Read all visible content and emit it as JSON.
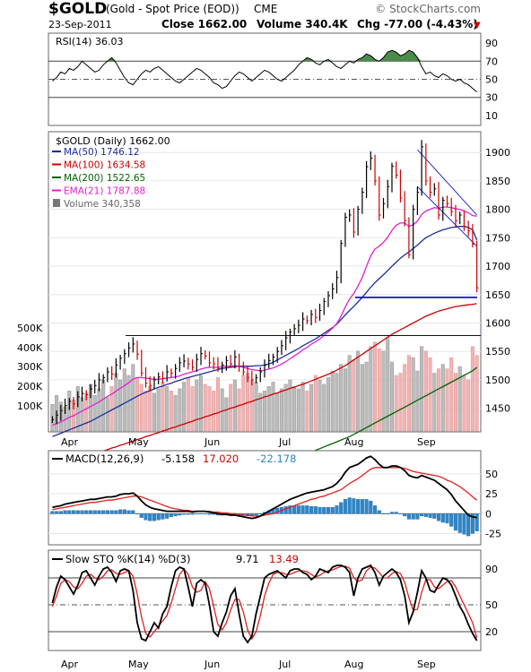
{
  "header": {
    "symbol": "$GOLD",
    "name": "(Gold - Spot Price (EOD))",
    "exchange": "CME",
    "watermark": "© StockCharts.com",
    "date": "23-Sep-2011",
    "close": "Close 1662.00",
    "volume": "Volume 340.4K",
    "change": "Chg -77.00 (-4.43%)",
    "change_marker": "▼",
    "down_color": "#cc0000"
  },
  "x_labels": [
    "Apr",
    "May",
    "Jun",
    "Jul",
    "Aug",
    "Sep"
  ],
  "chart_data": [
    {
      "type": "line",
      "panel": "rsi",
      "legend": "RSI(14) 36.03",
      "y_ticks": [
        90,
        70,
        50,
        30,
        10
      ],
      "ylim": [
        0,
        100
      ],
      "reference_lines": [
        70,
        50,
        30
      ],
      "fill_above": 70,
      "fill_color": "#4a8a4a",
      "values": [
        48,
        52,
        58,
        56,
        62,
        60,
        64,
        70,
        66,
        62,
        58,
        60,
        66,
        70,
        74,
        68,
        60,
        52,
        46,
        44,
        50,
        56,
        60,
        58,
        62,
        64,
        60,
        56,
        52,
        48,
        46,
        50,
        54,
        58,
        62,
        60,
        56,
        52,
        46,
        44,
        40,
        42,
        48,
        54,
        58,
        56,
        52,
        48,
        52,
        56,
        60,
        58,
        54,
        50,
        48,
        52,
        56,
        60,
        66,
        70,
        74,
        72,
        68,
        66,
        70,
        72,
        68,
        64,
        62,
        66,
        70,
        68,
        72,
        74,
        78,
        76,
        72,
        70,
        74,
        80,
        82,
        80,
        76,
        78,
        82,
        80,
        74,
        64,
        56,
        58,
        54,
        52,
        56,
        54,
        50,
        48,
        50,
        46,
        44,
        40,
        36
      ]
    },
    {
      "type": "line",
      "panel": "price",
      "title": "$GOLD (Daily) 1662.00",
      "y_ticks": [
        1900,
        1850,
        1800,
        1750,
        1700,
        1650,
        1600,
        1550,
        1500,
        1450
      ],
      "ylim": [
        1410,
        1935
      ],
      "volume_ticks": [
        "500K",
        "400K",
        "300K",
        "200K",
        "100K"
      ],
      "volume_lim": [
        0,
        520
      ],
      "legend": [
        {
          "label": "MA(50) 1746.12",
          "color": "#1c2f9a"
        },
        {
          "label": "MA(100) 1634.58",
          "color": "#cc0000"
        },
        {
          "label": "MA(200) 1522.65",
          "color": "#006400"
        },
        {
          "label": "EMA(21) 1787.88",
          "color": "#e020d0"
        },
        {
          "label": "Volume 340,358",
          "color": "#666666"
        }
      ],
      "close": [
        1430,
        1438,
        1446,
        1455,
        1462,
        1458,
        1470,
        1476,
        1474,
        1484,
        1490,
        1500,
        1504,
        1514,
        1510,
        1526,
        1538,
        1546,
        1556,
        1563,
        1545,
        1512,
        1494,
        1490,
        1500,
        1505,
        1503,
        1514,
        1512,
        1520,
        1530,
        1533,
        1528,
        1522,
        1536,
        1546,
        1542,
        1530,
        1528,
        1520,
        1526,
        1534,
        1528,
        1540,
        1524,
        1514,
        1504,
        1500,
        1504,
        1514,
        1526,
        1534,
        1540,
        1550,
        1560,
        1574,
        1584,
        1590,
        1596,
        1607,
        1604,
        1615,
        1610,
        1622,
        1638,
        1648,
        1660,
        1680,
        1740,
        1786,
        1790,
        1760,
        1800,
        1830,
        1875,
        1890,
        1850,
        1790,
        1810,
        1840,
        1876,
        1860,
        1820,
        1780,
        1720,
        1800,
        1830,
        1910,
        1850,
        1830,
        1836,
        1790,
        1816,
        1810,
        1796,
        1780,
        1790,
        1770,
        1762,
        1739,
        1662
      ],
      "volume": [
        120,
        160,
        130,
        110,
        180,
        140,
        200,
        150,
        170,
        210,
        160,
        190,
        230,
        150,
        200,
        260,
        230,
        280,
        250,
        300,
        240,
        210,
        180,
        200,
        170,
        190,
        220,
        200,
        180,
        160,
        190,
        220,
        240,
        200,
        230,
        250,
        210,
        200,
        180,
        240,
        190,
        150,
        210,
        230,
        190,
        250,
        260,
        230,
        220,
        170,
        180,
        200,
        220,
        170,
        190,
        210,
        230,
        200,
        190,
        220,
        180,
        210,
        250,
        230,
        210,
        240,
        270,
        260,
        300,
        280,
        340,
        320,
        360,
        300,
        310,
        380,
        400,
        370,
        360,
        420,
        310,
        250,
        260,
        300,
        340,
        330,
        270,
        380,
        360,
        330,
        260,
        280,
        300,
        280,
        330,
        260,
        290,
        250,
        230,
        380,
        340
      ],
      "ma50": [
        1400,
        1403,
        1406,
        1409,
        1412,
        1415,
        1418,
        1421,
        1424,
        1427,
        1431,
        1435,
        1439,
        1443,
        1447,
        1451,
        1455,
        1459,
        1463,
        1467,
        1471,
        1475,
        1478,
        1481,
        1484,
        1487,
        1489,
        1492,
        1494,
        1497,
        1499,
        1502,
        1504,
        1506,
        1508,
        1510,
        1512,
        1514,
        1516,
        1518,
        1520,
        1521,
        1522,
        1523,
        1524,
        1524,
        1524,
        1524,
        1525,
        1525,
        1526,
        1528,
        1531,
        1535,
        1539,
        1543,
        1547,
        1551,
        1555,
        1560,
        1564,
        1568,
        1572,
        1577,
        1582,
        1587,
        1592,
        1598,
        1606,
        1614,
        1622,
        1629,
        1637,
        1645,
        1654,
        1663,
        1671,
        1678,
        1685,
        1692,
        1700,
        1707,
        1714,
        1720,
        1725,
        1731,
        1737,
        1744,
        1750,
        1754,
        1758,
        1761,
        1764,
        1766,
        1768,
        1769,
        1770,
        1770,
        1768,
        1764,
        1746
      ],
      "ma100": [
        1350,
        1352,
        1354,
        1356,
        1358,
        1360,
        1362,
        1364,
        1366,
        1368,
        1370,
        1372,
        1375,
        1377,
        1380,
        1382,
        1385,
        1387,
        1390,
        1392,
        1395,
        1397,
        1400,
        1402,
        1405,
        1407,
        1410,
        1412,
        1415,
        1417,
        1420,
        1422,
        1425,
        1427,
        1430,
        1432,
        1435,
        1437,
        1440,
        1442,
        1445,
        1447,
        1450,
        1452,
        1455,
        1457,
        1460,
        1462,
        1465,
        1467,
        1470,
        1472,
        1475,
        1477,
        1480,
        1482,
        1485,
        1487,
        1490,
        1492,
        1495,
        1498,
        1501,
        1504,
        1507,
        1510,
        1513,
        1517,
        1521,
        1525,
        1530,
        1535,
        1540,
        1545,
        1550,
        1555,
        1560,
        1565,
        1570,
        1575,
        1580,
        1584,
        1588,
        1592,
        1596,
        1600,
        1604,
        1608,
        1612,
        1615,
        1618,
        1621,
        1623,
        1625,
        1627,
        1629,
        1630,
        1631,
        1632,
        1633,
        1634
      ],
      "ma200": [
        1300,
        1301,
        1302,
        1303,
        1304,
        1305,
        1306,
        1307,
        1308,
        1309,
        1310,
        1311,
        1312,
        1313,
        1314,
        1315,
        1316,
        1317,
        1318,
        1319,
        1320,
        1321,
        1322,
        1323,
        1324,
        1325,
        1326,
        1327,
        1328,
        1329,
        1330,
        1331,
        1332,
        1333,
        1334,
        1335,
        1336,
        1337,
        1338,
        1339,
        1340,
        1341,
        1342,
        1343,
        1344,
        1345,
        1346,
        1347,
        1348,
        1349,
        1350,
        1352,
        1354,
        1356,
        1358,
        1360,
        1362,
        1364,
        1366,
        1368,
        1370,
        1373,
        1376,
        1379,
        1382,
        1385,
        1388,
        1391,
        1394,
        1397,
        1400,
        1404,
        1408,
        1412,
        1416,
        1420,
        1424,
        1428,
        1432,
        1436,
        1440,
        1444,
        1448,
        1452,
        1456,
        1460,
        1464,
        1468,
        1472,
        1476,
        1480,
        1484,
        1488,
        1492,
        1496,
        1500,
        1504,
        1508,
        1512,
        1516,
        1522
      ],
      "ema21": [
        1420,
        1423,
        1426,
        1430,
        1434,
        1437,
        1441,
        1445,
        1449,
        1453,
        1457,
        1461,
        1466,
        1471,
        1475,
        1480,
        1485,
        1490,
        1495,
        1501,
        1504,
        1504,
        1503,
        1502,
        1501,
        1501,
        1502,
        1503,
        1504,
        1505,
        1507,
        1510,
        1512,
        1514,
        1516,
        1519,
        1521,
        1522,
        1522,
        1522,
        1523,
        1524,
        1524,
        1525,
        1524,
        1522,
        1520,
        1518,
        1517,
        1516,
        1517,
        1519,
        1521,
        1524,
        1528,
        1532,
        1537,
        1542,
        1547,
        1553,
        1557,
        1563,
        1567,
        1572,
        1578,
        1584,
        1591,
        1599,
        1612,
        1628,
        1642,
        1652,
        1665,
        1680,
        1700,
        1718,
        1730,
        1735,
        1742,
        1751,
        1763,
        1772,
        1776,
        1776,
        1770,
        1773,
        1779,
        1791,
        1797,
        1800,
        1803,
        1802,
        1804,
        1804,
        1803,
        1801,
        1800,
        1797,
        1794,
        1789,
        1788
      ],
      "support_lines": [
        {
          "value": 1578,
          "color": "#00008b"
        },
        {
          "value": 1645,
          "color": "#0000cc"
        }
      ]
    },
    {
      "type": "line",
      "panel": "macd",
      "legend": [
        "MACD(12,26,9)",
        "-5.158",
        "17.020",
        "-22.178"
      ],
      "y_ticks": [
        50,
        25,
        0,
        -25
      ],
      "ylim": [
        -38,
        78
      ],
      "macd": [
        8,
        9,
        10,
        12,
        13,
        14,
        15,
        16,
        17,
        18,
        18,
        19,
        20,
        21,
        21,
        22,
        24,
        25,
        25,
        26,
        22,
        16,
        11,
        8,
        6,
        5,
        4,
        3,
        3,
        3,
        3,
        3,
        3,
        2,
        3,
        3,
        3,
        2,
        1,
        0,
        -1,
        -1,
        -2,
        -2,
        -3,
        -4,
        -5,
        -6,
        -5,
        -3,
        0,
        3,
        6,
        9,
        12,
        15,
        18,
        20,
        22,
        24,
        26,
        27,
        28,
        29,
        30,
        32,
        34,
        38,
        44,
        52,
        58,
        60,
        62,
        66,
        70,
        72,
        68,
        62,
        58,
        58,
        60,
        60,
        58,
        54,
        48,
        46,
        45,
        48,
        46,
        44,
        42,
        38,
        34,
        30,
        24,
        16,
        10,
        4,
        -2,
        -4,
        -5
      ],
      "signal": [
        5,
        6,
        7,
        8,
        9,
        10,
        11,
        12,
        13,
        14,
        14,
        15,
        16,
        17,
        17,
        18,
        19,
        20,
        21,
        22,
        22,
        21,
        19,
        17,
        15,
        13,
        11,
        9,
        7,
        6,
        5,
        4,
        4,
        3,
        3,
        3,
        3,
        3,
        2,
        2,
        1,
        1,
        0,
        0,
        -1,
        -2,
        -2,
        -3,
        -3,
        -3,
        -2,
        -1,
        0,
        2,
        4,
        6,
        8,
        10,
        12,
        14,
        16,
        18,
        19,
        21,
        22,
        24,
        26,
        28,
        30,
        34,
        38,
        41,
        44,
        48,
        52,
        56,
        58,
        58,
        58,
        58,
        58,
        58,
        58,
        57,
        55,
        53,
        52,
        51,
        50,
        49,
        48,
        47,
        45,
        42,
        40,
        37,
        34,
        30,
        26,
        21,
        17
      ],
      "histogram": [
        3,
        3,
        3,
        4,
        4,
        4,
        4,
        4,
        4,
        4,
        4,
        4,
        4,
        4,
        4,
        4,
        5,
        5,
        4,
        4,
        0,
        -5,
        -8,
        -9,
        -9,
        -8,
        -7,
        -6,
        -4,
        -3,
        -2,
        -1,
        -1,
        -1,
        0,
        0,
        0,
        -1,
        -1,
        -2,
        -2,
        -2,
        -2,
        -2,
        -2,
        -2,
        -3,
        -3,
        -2,
        0,
        2,
        4,
        6,
        7,
        8,
        9,
        10,
        10,
        10,
        10,
        10,
        9,
        9,
        8,
        8,
        8,
        8,
        10,
        14,
        18,
        20,
        19,
        18,
        18,
        18,
        16,
        10,
        4,
        0,
        0,
        2,
        2,
        0,
        -3,
        -7,
        -7,
        -7,
        -3,
        -4,
        -5,
        -6,
        -9,
        -11,
        -12,
        -16,
        -21,
        -24,
        -26,
        -28,
        -25,
        -22
      ]
    },
    {
      "type": "line",
      "panel": "slow_sto",
      "legend": [
        "Slow STO %K(14) %D(3)",
        "9.71",
        "13.49"
      ],
      "y_ticks": [
        90,
        50,
        20
      ],
      "ylim": [
        0,
        110
      ],
      "reference_lines": [
        80,
        50,
        20
      ],
      "k": [
        52,
        70,
        82,
        78,
        70,
        62,
        72,
        86,
        88,
        80,
        72,
        82,
        90,
        92,
        86,
        76,
        88,
        90,
        88,
        66,
        30,
        12,
        10,
        20,
        30,
        24,
        40,
        48,
        70,
        88,
        92,
        90,
        70,
        48,
        74,
        78,
        74,
        50,
        20,
        15,
        30,
        42,
        60,
        68,
        40,
        15,
        8,
        15,
        40,
        60,
        80,
        84,
        86,
        88,
        84,
        80,
        88,
        90,
        90,
        86,
        84,
        78,
        82,
        90,
        88,
        86,
        92,
        94,
        94,
        92,
        86,
        60,
        80,
        90,
        92,
        94,
        86,
        72,
        82,
        86,
        90,
        86,
        78,
        60,
        30,
        42,
        64,
        88,
        80,
        66,
        64,
        72,
        80,
        78,
        72,
        60,
        48,
        40,
        28,
        18,
        10
      ],
      "d": [
        48,
        60,
        74,
        78,
        76,
        70,
        68,
        74,
        82,
        84,
        80,
        78,
        82,
        88,
        89,
        85,
        84,
        86,
        88,
        82,
        62,
        36,
        18,
        14,
        20,
        26,
        32,
        38,
        52,
        68,
        84,
        90,
        84,
        70,
        64,
        66,
        76,
        68,
        48,
        28,
        22,
        30,
        44,
        56,
        56,
        42,
        22,
        12,
        20,
        38,
        60,
        74,
        84,
        86,
        86,
        84,
        84,
        86,
        88,
        88,
        87,
        84,
        81,
        83,
        86,
        88,
        89,
        91,
        93,
        93,
        91,
        80,
        76,
        78,
        88,
        92,
        91,
        86,
        80,
        80,
        85,
        87,
        85,
        75,
        58,
        44,
        45,
        64,
        78,
        78,
        70,
        68,
        72,
        76,
        77,
        70,
        60,
        50,
        40,
        30,
        13
      ]
    }
  ]
}
